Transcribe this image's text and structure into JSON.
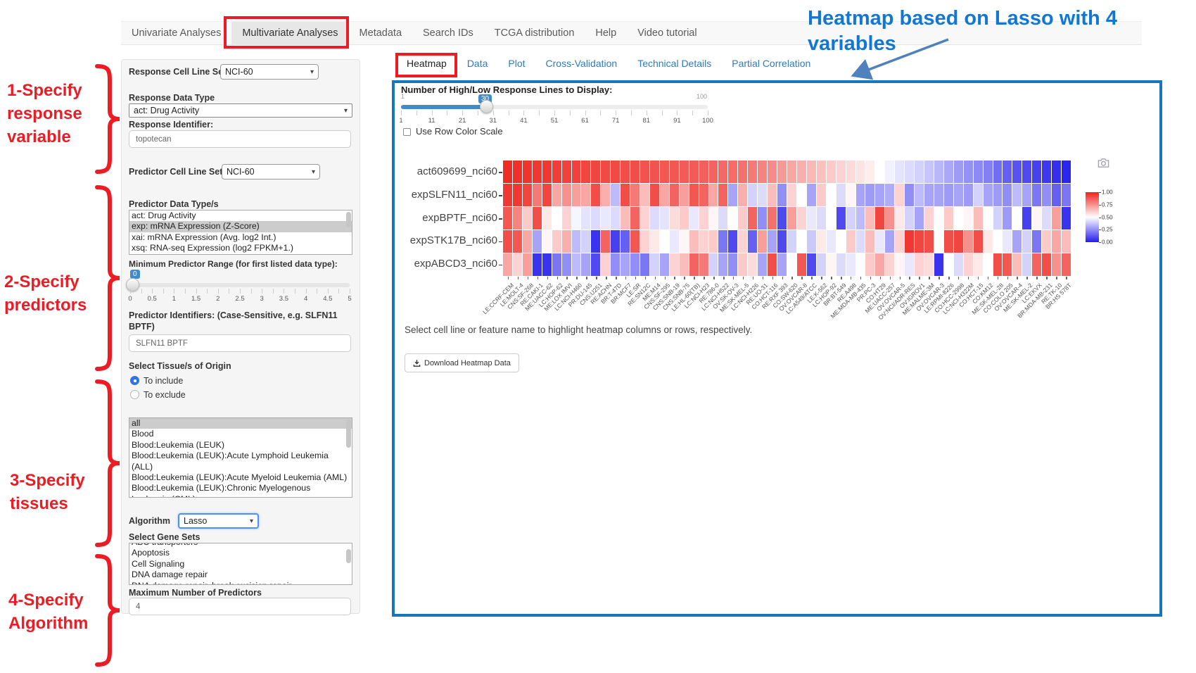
{
  "nav": {
    "items": [
      "Univariate Analyses",
      "Multivariate Analyses",
      "Metadata",
      "Search IDs",
      "TCGA distribution",
      "Help",
      "Video tutorial"
    ],
    "active": "Multivariate Analyses"
  },
  "annotations": {
    "red": "#ec1c24",
    "blue_note": {
      "text": "Heatmap based on Lasso with 4 variables",
      "color": "#1277d3"
    },
    "steps": [
      {
        "lines": [
          "1-Specify",
          "response",
          "variable"
        ]
      },
      {
        "lines": [
          "2-Specify",
          "predictors"
        ]
      },
      {
        "lines": [
          "3-Specify",
          "tissues"
        ]
      },
      {
        "lines": [
          "4-Specify",
          "Algorithm"
        ]
      }
    ]
  },
  "sidebar": {
    "response_cell_line_set": {
      "label": "Response Cell Line Set",
      "value": "NCI-60"
    },
    "response_data_type": {
      "label": "Response Data Type",
      "value": "act: Drug Activity"
    },
    "response_identifier": {
      "label": "Response Identifier:",
      "value": "topotecan"
    },
    "predictor_cell_line_set": {
      "label": "Predictor Cell Line Set",
      "value": "NCI-60"
    },
    "predictor_data_types": {
      "label": "Predictor Data Type/s",
      "options": [
        "act: Drug Activity",
        "exp: mRNA Expression (Z-Score)",
        "xai: mRNA Expression (Avg. log2 Int.)",
        "xsq: RNA-seq Expression (log2 FPKM+1.)"
      ],
      "selected": "exp: mRNA Expression (Z-Score)"
    },
    "min_predictor_range": {
      "label": "Minimum Predictor Range (for first listed data type):",
      "value": "0",
      "ticks": [
        "0",
        "0.5",
        "1",
        "1.5",
        "2",
        "2.5",
        "3",
        "3.5",
        "4",
        "4.5",
        "5"
      ]
    },
    "predictor_identifiers": {
      "label": "Predictor Identifiers: (Case-Sensitive, e.g. SLFN11 BPTF)",
      "value": "SLFN11 BPTF"
    },
    "tissue": {
      "label": "Select Tissue/s of Origin",
      "radios": [
        {
          "label": "To include",
          "checked": true
        },
        {
          "label": "To exclude",
          "checked": false
        }
      ],
      "options": [
        "all",
        "Blood",
        "Blood:Leukemia (LEUK)",
        "Blood:Leukemia (LEUK):Acute Lymphoid Leukemia (ALL)",
        "Blood:Leukemia (LEUK):Acute Myeloid Leukemia (AML)",
        "Blood:Leukemia (LEUK):Chronic Myelogenous Leukemia (CML)"
      ],
      "selected": "all"
    },
    "algorithm": {
      "label": "Algorithm",
      "value": "Lasso"
    },
    "gene_sets": {
      "label": "Select Gene Sets",
      "options": [
        "ABC transporters",
        "Apoptosis",
        "Cell Signaling",
        "DNA damage repair",
        "DNA damage repair, break excision repair"
      ]
    },
    "max_predictors": {
      "label": "Maximum Number of Predictors",
      "value": "4"
    }
  },
  "main": {
    "tabs": [
      "Heatmap",
      "Data",
      "Plot",
      "Cross-Validation",
      "Technical Details",
      "Partial Correlation"
    ],
    "active_tab": "Heatmap",
    "slider": {
      "label": "Number of High/Low Response Lines to Display:",
      "min": "1",
      "max": "100",
      "value": "30",
      "ticks": [
        "1",
        "11",
        "21",
        "31",
        "41",
        "51",
        "61",
        "71",
        "81",
        "91",
        "100"
      ]
    },
    "row_color_scale_label": "Use Row Color Scale",
    "hint": "Select cell line or feature name to highlight heatmap columns or rows, respectively.",
    "download_label": "Download Heatmap Data"
  },
  "chart_data": {
    "type": "heatmap",
    "title": "",
    "rows": [
      "act609699_nci60",
      "expSLFN11_nci60",
      "expBPTF_nci60",
      "expSTK17B_nci60",
      "expABCD3_nci60"
    ],
    "columns": [
      "LE:CCRF-CEM",
      "LE:MOLT-4",
      "CNS:SF-268",
      "RE:CAKI-1",
      "ME:UACC-62",
      "LC:HOP-62",
      "ME:LOX IMVI",
      "LC:NCI-H460",
      "PR:DU-145",
      "CNS:U251",
      "RE:ACHN",
      "BR:T-47D",
      "BR:MCF7",
      "LE:SR",
      "RE:SN12C",
      "ME:M14",
      "CNS:SF-295",
      "CNS:SNB-19",
      "CNS:SNB-75",
      "LE:HL-60(TB)",
      "LC:NCI-H23",
      "RE:786-0",
      "LC:NCI-H522",
      "OV:SK-OV-3",
      "ME:SK-MEL-5",
      "LC:NCI-H226",
      "RE:UO-31",
      "CO:HCT-116",
      "RE:RXF 393",
      "CO:SW-620",
      "OV:OVCAR-8",
      "LC:A549/ATCC",
      "LE:K-562",
      "LC:HOP-92",
      "BR:BT-549",
      "RE:A498",
      "ME:MDA-MB-435",
      "PR:PC-3",
      "CO:HT29",
      "ME:UACC-257",
      "OV:OVCAR-5",
      "OV:NCI/ADR-RES",
      "OV:IGROV1",
      "ME:MALME-3M",
      "OV:OVCAR-3",
      "LE:RPMI-8226",
      "CO:HCC-2998",
      "LC:NCI-H322M",
      "CO:HCT-15",
      "CO:KM12",
      "ME:SK-MEL-28",
      "CO:COLO 205",
      "OV:OVCAR-4",
      "ME:SK-MEL-2",
      "LC:EKVX",
      "BR:MDA-MB-231",
      "RE:TK-10",
      "BR:HS 578T"
    ],
    "series": [
      {
        "name": "act609699_nci60",
        "values": [
          0.98,
          0.97,
          0.96,
          0.95,
          0.95,
          0.94,
          0.93,
          0.93,
          0.92,
          0.92,
          0.91,
          0.91,
          0.9,
          0.9,
          0.89,
          0.89,
          0.88,
          0.88,
          0.87,
          0.87,
          0.86,
          0.85,
          0.84,
          0.83,
          0.82,
          0.8,
          0.78,
          0.76,
          0.73,
          0.7,
          0.68,
          0.66,
          0.64,
          0.62,
          0.6,
          0.58,
          0.56,
          0.54,
          0.5,
          0.47,
          0.44,
          0.42,
          0.4,
          0.37,
          0.34,
          0.31,
          0.28,
          0.26,
          0.24,
          0.22,
          0.18,
          0.15,
          0.12,
          0.1,
          0.08,
          0.06,
          0.04,
          0.02
        ]
      },
      {
        "name": "expSLFN11_nci60",
        "values": [
          0.95,
          0.95,
          0.92,
          0.8,
          0.92,
          0.7,
          0.75,
          0.72,
          0.7,
          0.9,
          0.68,
          0.35,
          0.9,
          0.8,
          0.65,
          0.9,
          0.7,
          0.85,
          0.72,
          0.88,
          0.85,
          0.7,
          0.85,
          0.3,
          0.68,
          0.4,
          0.42,
          0.65,
          0.25,
          0.6,
          0.5,
          0.3,
          0.62,
          0.5,
          0.42,
          0.52,
          0.3,
          0.28,
          0.3,
          0.32,
          0.6,
          0.25,
          0.35,
          0.3,
          0.3,
          0.28,
          0.3,
          0.28,
          0.4,
          0.3,
          0.28,
          0.25,
          0.35,
          0.3,
          0.2,
          0.25,
          0.15,
          0.2
        ]
      },
      {
        "name": "expBPTF_nci60",
        "values": [
          0.88,
          0.78,
          0.62,
          0.9,
          0.55,
          0.5,
          0.6,
          0.48,
          0.44,
          0.42,
          0.45,
          0.42,
          0.65,
          0.85,
          0.6,
          0.42,
          0.44,
          0.58,
          0.62,
          0.45,
          0.6,
          0.52,
          0.42,
          0.5,
          0.62,
          0.85,
          0.25,
          0.82,
          0.1,
          0.72,
          0.6,
          0.45,
          0.42,
          0.5,
          0.1,
          0.4,
          0.35,
          0.65,
          0.92,
          0.75,
          0.55,
          0.4,
          0.3,
          0.6,
          0.5,
          0.62,
          0.5,
          0.52,
          0.65,
          0.5,
          0.4,
          0.28,
          0.5,
          0.08,
          0.52,
          0.42,
          0.72,
          0.05
        ]
      },
      {
        "name": "expSTK17B_nci60",
        "values": [
          0.9,
          0.88,
          0.7,
          0.3,
          0.52,
          0.62,
          0.68,
          0.35,
          0.4,
          0.05,
          0.85,
          0.08,
          0.15,
          0.88,
          0.6,
          0.55,
          0.5,
          0.45,
          0.52,
          0.65,
          0.6,
          0.62,
          0.2,
          0.1,
          0.6,
          0.15,
          0.72,
          0.3,
          0.1,
          0.4,
          0.5,
          0.38,
          0.55,
          0.45,
          0.5,
          0.62,
          0.42,
          0.65,
          0.45,
          0.3,
          0.6,
          0.95,
          0.92,
          0.9,
          0.5,
          0.9,
          0.92,
          0.75,
          0.9,
          0.55,
          0.5,
          0.45,
          0.3,
          0.4,
          0.2,
          0.62,
          0.7,
          0.65
        ]
      },
      {
        "name": "expABCD3_nci60",
        "values": [
          0.7,
          0.6,
          0.72,
          0.05,
          0.05,
          0.2,
          0.25,
          0.35,
          0.3,
          0.1,
          0.6,
          0.25,
          0.3,
          0.25,
          0.2,
          0.4,
          0.3,
          0.6,
          0.65,
          0.85,
          0.8,
          0.4,
          0.3,
          0.25,
          0.62,
          0.58,
          0.3,
          0.9,
          0.3,
          0.5,
          0.88,
          0.1,
          0.4,
          0.52,
          0.42,
          0.45,
          0.5,
          0.62,
          0.7,
          0.6,
          0.52,
          0.45,
          0.6,
          0.58,
          0.05,
          0.5,
          0.42,
          0.6,
          0.55,
          0.5,
          0.9,
          0.88,
          0.65,
          0.4,
          0.85,
          0.9,
          0.75,
          0.85
        ]
      }
    ],
    "colorscale": {
      "low": "#231ceb",
      "mid": "#ffffff",
      "high": "#ee221c",
      "min": 0,
      "max": 1
    },
    "colorbar_ticks": [
      "1.00",
      "0.75",
      "0.50",
      "0.25",
      "0.00"
    ],
    "legend_position": "right",
    "grid": false
  }
}
